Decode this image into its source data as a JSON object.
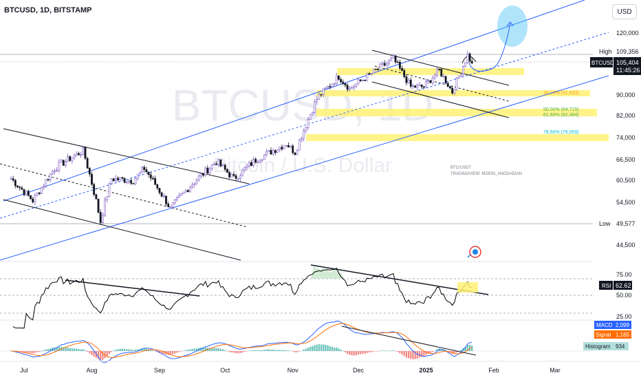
{
  "header": {
    "symbol_line": "BTCUSD, 1D, BITSTAMP",
    "currency": "USD"
  },
  "watermark": {
    "big": "BTCUSD, 1D",
    "sub": "Bitcoin / U.S. Dollar"
  },
  "author_note": {
    "line1": "BTC/USDT",
    "line2": "TRADINGVIEW: MOEIN_HADDADIAN"
  },
  "price_axis": {
    "ticks": [
      "120,000",
      "90,000",
      "82,000",
      "74,000",
      "66,500",
      "60,500",
      "54,500",
      "44,500"
    ],
    "high_label": "High",
    "high_value": "109,356",
    "low_label": "Low",
    "low_value": "49,577",
    "current_label": "BTCUSD",
    "current_value": "105,404",
    "countdown": "11:45:26"
  },
  "fib_levels": [
    {
      "label": "38.20% (91,633)",
      "color": "#f7a21b"
    },
    {
      "label": "50.00% (84,715)",
      "color": "#4caf50"
    },
    {
      "label": "61.80% (82,494)",
      "color": "#4caf50"
    },
    {
      "label": "78.60% (76,059)",
      "color": "#00bcd4"
    }
  ],
  "rsi": {
    "label": "RSI",
    "value": "62.62",
    "ticks": [
      "75.00",
      "50.00",
      "25.00"
    ]
  },
  "macd": {
    "macd_label": "MACD",
    "macd_value": "2,099",
    "signal_label": "Signal",
    "signal_value": "1,165",
    "hist_label": "Histogram",
    "hist_value": "934"
  },
  "time_axis": {
    "labels": [
      "Jul",
      "Aug",
      "Sep",
      "Oct",
      "Nov",
      "Dec",
      "2025",
      "Feb",
      "Mar"
    ]
  },
  "colors": {
    "up": "#089981",
    "down": "#131722",
    "bull_candle": "#7e57c2",
    "channel": "#2962ff",
    "zone": "#ffeb3b",
    "rsi_line": "#000000",
    "macd_line": "#2962ff",
    "signal_line": "#ff6d00"
  },
  "chart_data": {
    "type": "candlestick",
    "symbol": "BTCUSD",
    "interval": "1D",
    "exchange": "BITSTAMP",
    "x_range": [
      "2024-06-24",
      "2025-03-10"
    ],
    "ylim": [
      42000,
      128000
    ],
    "y_ticks": [
      120000,
      90000,
      82000,
      74000,
      66500,
      60500,
      54500,
      44500
    ],
    "price_path": [
      [
        "2024-06-25",
        61000
      ],
      [
        "2024-07-05",
        55000
      ],
      [
        "2024-07-15",
        64000
      ],
      [
        "2024-07-28",
        69500
      ],
      [
        "2024-08-05",
        50000
      ],
      [
        "2024-08-10",
        61000
      ],
      [
        "2024-08-20",
        60500
      ],
      [
        "2024-08-25",
        64000
      ],
      [
        "2024-09-06",
        53000
      ],
      [
        "2024-09-15",
        59000
      ],
      [
        "2024-09-27",
        66000
      ],
      [
        "2024-10-05",
        61000
      ],
      [
        "2024-10-15",
        66500
      ],
      [
        "2024-10-29",
        72000
      ],
      [
        "2024-11-02",
        69000
      ],
      [
        "2024-11-12",
        88500
      ],
      [
        "2024-11-22",
        99000
      ],
      [
        "2024-11-27",
        93000
      ],
      [
        "2024-12-05",
        99000
      ],
      [
        "2024-12-17",
        107500
      ],
      [
        "2024-12-25",
        94000
      ],
      [
        "2024-12-31",
        94000
      ],
      [
        "2025-01-07",
        102000
      ],
      [
        "2025-01-13",
        91500
      ],
      [
        "2025-01-20",
        109356
      ],
      [
        "2025-01-22",
        105404
      ]
    ],
    "high": 109356,
    "low": 49577,
    "last": 105404,
    "fib_zones": [
      91633,
      84715,
      82494,
      76059
    ],
    "rsi": {
      "value": 62.62,
      "levels": [
        75,
        50,
        25
      ]
    },
    "macd": {
      "macd": 2099,
      "signal": 1165,
      "histogram": 934
    },
    "x_labels": [
      "Jul",
      "Aug",
      "Sep",
      "Oct",
      "Nov",
      "Dec",
      "2025",
      "Feb",
      "Mar"
    ]
  }
}
